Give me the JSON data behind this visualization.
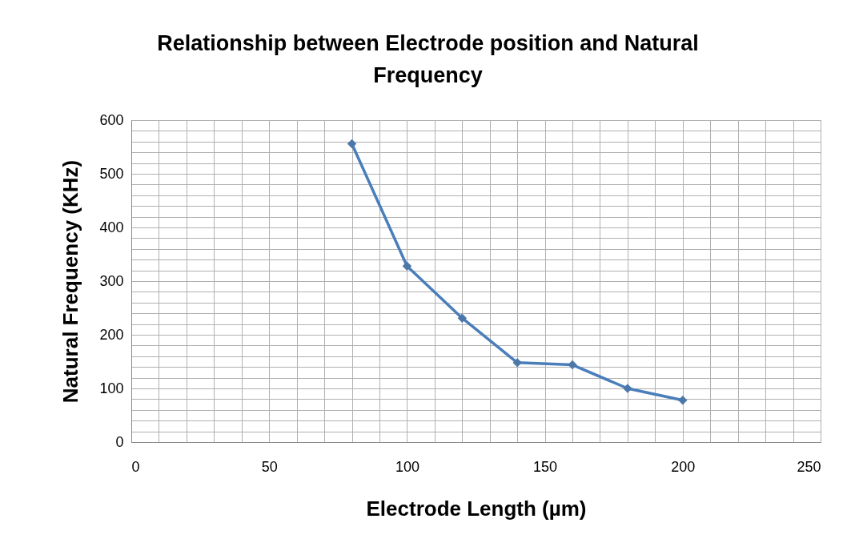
{
  "chart_data": {
    "type": "line",
    "title": "Relationship between Electrode position and Natural Frequency",
    "xlabel": "Electrode Length (µm)",
    "ylabel": "Natural Frequency (KHz)",
    "x": [
      80,
      100,
      120,
      140,
      160,
      180,
      200
    ],
    "series": [
      {
        "color": "#4a7ebb",
        "values": [
          556,
          328,
          231,
          148,
          144,
          100,
          78
        ]
      }
    ],
    "xlim": [
      0,
      250
    ],
    "xticks": [
      0,
      {
        "value": 10,
        "label": null
      },
      {
        "value": 20,
        "label": null
      },
      {
        "value": 30,
        "label": null
      },
      {
        "value": 40,
        "label": null
      },
      50,
      {
        "value": 60,
        "label": null
      },
      {
        "value": 70,
        "label": null
      },
      {
        "value": 80,
        "label": null
      },
      {
        "value": 90,
        "label": null
      },
      100,
      {
        "value": 110,
        "label": null
      },
      {
        "value": 120,
        "label": null
      },
      {
        "value": 130,
        "label": null
      },
      {
        "value": 140,
        "label": null
      },
      150,
      {
        "value": 160,
        "label": null
      },
      {
        "value": 170,
        "label": null
      },
      {
        "value": 180,
        "label": null
      },
      {
        "value": 190,
        "label": null
      },
      200,
      {
        "value": 210,
        "label": null
      },
      {
        "value": 220,
        "label": null
      },
      {
        "value": 230,
        "label": null
      },
      {
        "value": 240,
        "label": null
      },
      250
    ],
    "ylim": [
      0,
      600
    ],
    "yticks": [
      0,
      {
        "value": 20,
        "label": null
      },
      {
        "value": 40,
        "label": null
      },
      {
        "value": 60,
        "label": null
      },
      {
        "value": 80,
        "label": null
      },
      100,
      {
        "value": 120,
        "label": null
      },
      {
        "value": 140,
        "label": null
      },
      {
        "value": 160,
        "label": null
      },
      {
        "value": 180,
        "label": null
      },
      200,
      {
        "value": 220,
        "label": null
      },
      {
        "value": 240,
        "label": null
      },
      {
        "value": 260,
        "label": null
      },
      {
        "value": 280,
        "label": null
      },
      300,
      {
        "value": 320,
        "label": null
      },
      {
        "value": 340,
        "label": null
      },
      {
        "value": 360,
        "label": null
      },
      {
        "value": 380,
        "label": null
      },
      400,
      {
        "value": 420,
        "label": null
      },
      {
        "value": 440,
        "label": null
      },
      {
        "value": 460,
        "label": null
      },
      {
        "value": 480,
        "label": null
      },
      500,
      {
        "value": 520,
        "label": null
      },
      {
        "value": 540,
        "label": null
      },
      {
        "value": 560,
        "label": null
      },
      {
        "value": 580,
        "label": null
      },
      600
    ],
    "grid": true,
    "marker": "diamond",
    "line_style": "solid"
  }
}
